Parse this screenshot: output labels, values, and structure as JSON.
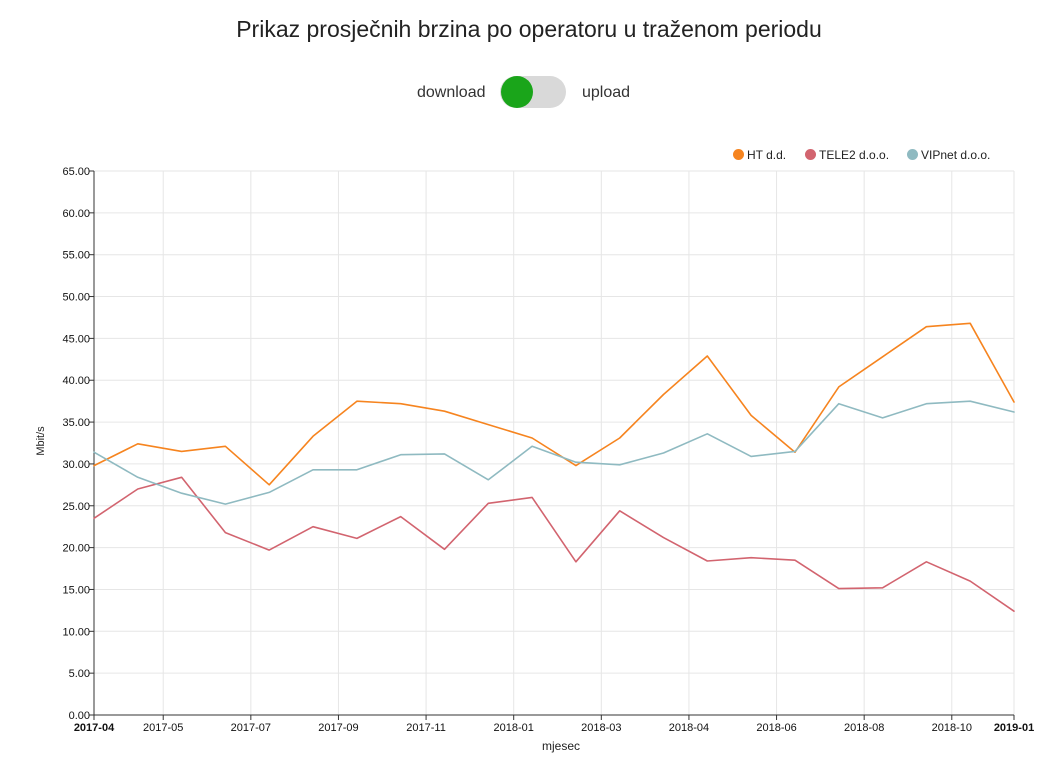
{
  "title": "Prikaz prosječnih brzina po operatoru u traženom periodu",
  "toggle": {
    "left_label": "download",
    "right_label": "upload",
    "state": "download"
  },
  "colors": {
    "toggle_on": "#1aa51a",
    "toggle_track": "#d9d9d9"
  },
  "chart_data": {
    "type": "line",
    "xlabel": "mjesec",
    "ylabel": "Mbit/s",
    "ylim": [
      0,
      65
    ],
    "yticks": [
      "0.00",
      "5.00",
      "10.00",
      "15.00",
      "20.00",
      "25.00",
      "30.00",
      "35.00",
      "40.00",
      "45.00",
      "50.00",
      "55.00",
      "60.00",
      "65.00"
    ],
    "x": [
      "2017-04",
      "2017-05",
      "2017-06",
      "2017-07",
      "2017-08",
      "2017-09",
      "2017-10",
      "2017-11",
      "2017-12",
      "2018-01",
      "2018-02",
      "2018-03",
      "2018-04",
      "2018-05",
      "2018-06",
      "2018-07",
      "2018-08",
      "2018-09",
      "2018-10",
      "2018-11",
      "2018-12",
      "2019-01"
    ],
    "xticks": [
      {
        "label": "2017-04",
        "index": 0,
        "bold": true
      },
      {
        "label": "2017-05",
        "index": 1.58
      },
      {
        "label": "2017-07",
        "index": 3.58
      },
      {
        "label": "2017-09",
        "index": 5.58
      },
      {
        "label": "2017-11",
        "index": 7.58
      },
      {
        "label": "2018-01",
        "index": 9.58
      },
      {
        "label": "2018-03",
        "index": 11.58
      },
      {
        "label": "2018-04",
        "index": 13.58
      },
      {
        "label": "2018-06",
        "index": 15.58
      },
      {
        "label": "2018-08",
        "index": 17.58
      },
      {
        "label": "2018-10",
        "index": 19.58
      },
      {
        "label": "2019-01",
        "index": 21,
        "bold": true
      }
    ],
    "grid": true,
    "legend_position": "top-right",
    "series": [
      {
        "name": "HT d.d.",
        "color": "#f6841f",
        "values": [
          29.8,
          32.4,
          31.5,
          32.1,
          27.5,
          33.3,
          37.5,
          37.2,
          36.3,
          34.7,
          33.1,
          29.8,
          33.1,
          38.3,
          42.9,
          35.8,
          31.4,
          39.2,
          42.8,
          46.4,
          46.8,
          37.4
        ]
      },
      {
        "name": "TELE2 d.o.o.",
        "color": "#d2646f",
        "values": [
          23.5,
          27.0,
          28.4,
          21.8,
          19.7,
          22.5,
          21.1,
          23.7,
          19.8,
          25.3,
          26.0,
          18.3,
          24.4,
          21.2,
          18.4,
          18.8,
          18.5,
          15.1,
          15.2,
          18.3,
          16.0,
          12.4
        ]
      },
      {
        "name": "VIPnet d.o.o.",
        "color": "#8fbac1",
        "values": [
          31.4,
          28.4,
          26.5,
          25.2,
          26.6,
          29.3,
          29.3,
          31.1,
          31.2,
          28.1,
          32.1,
          30.2,
          29.9,
          31.3,
          33.6,
          30.9,
          31.5,
          37.2,
          35.5,
          37.2,
          37.5,
          36.2
        ]
      }
    ]
  }
}
